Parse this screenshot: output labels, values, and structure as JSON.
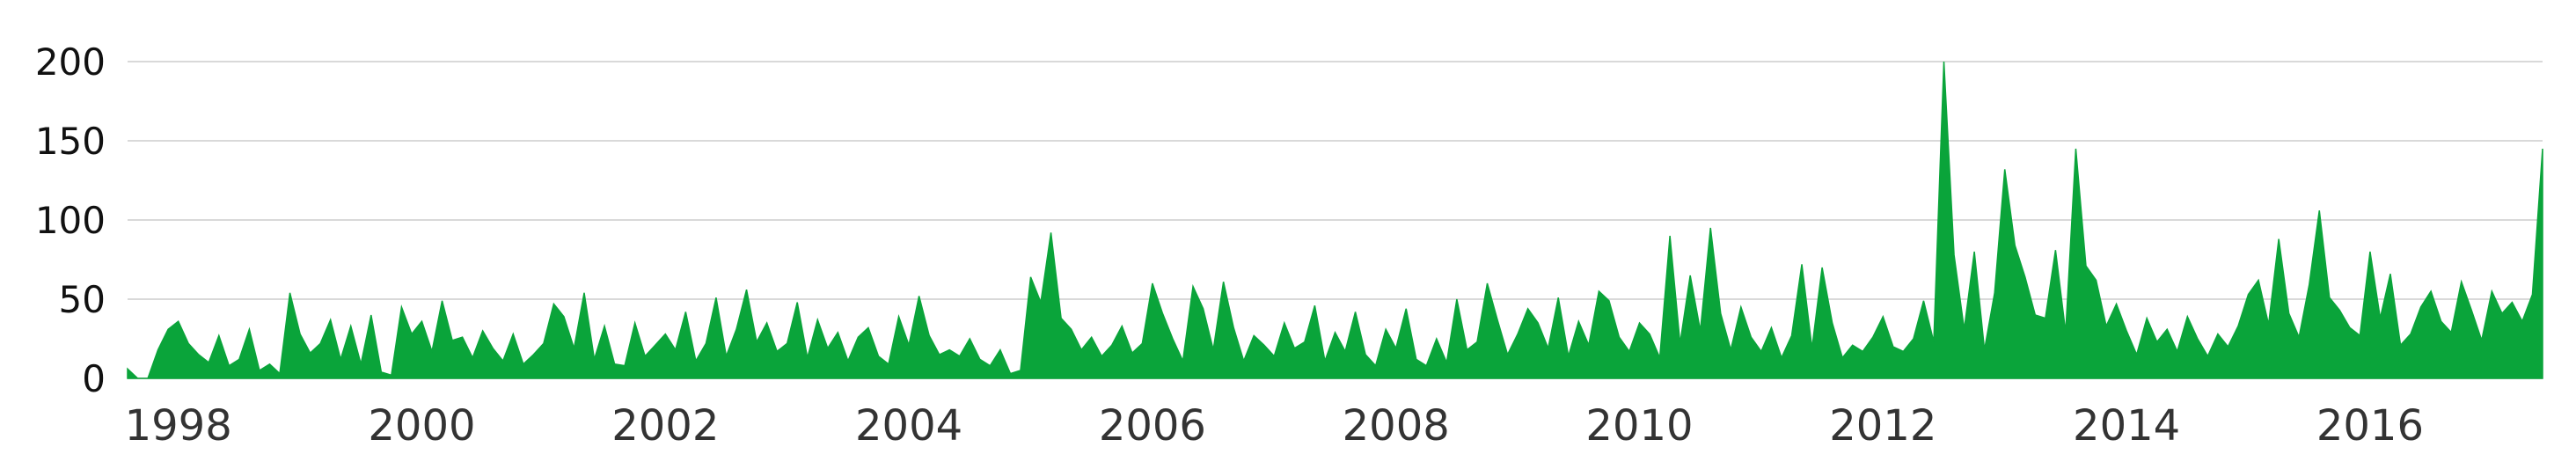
{
  "chart_data": {
    "type": "area",
    "title": "",
    "xlabel": "",
    "ylabel": "",
    "ylim": [
      0,
      200
    ],
    "xlim": [
      "1997-08",
      "2017-06"
    ],
    "grid": true,
    "legend": "none",
    "colors": {
      "series": "#0aa43a",
      "grid": "#d9d9d9",
      "background": "#ffffff"
    },
    "x_ticks": [
      {
        "date": "1998-01",
        "label": "1998"
      },
      {
        "date": "2000-01",
        "label": "2000"
      },
      {
        "date": "2002-01",
        "label": "2002"
      },
      {
        "date": "2004-01",
        "label": "2004"
      },
      {
        "date": "2006-01",
        "label": "2006"
      },
      {
        "date": "2008-01",
        "label": "2008"
      },
      {
        "date": "2010-01",
        "label": "2010"
      },
      {
        "date": "2012-01",
        "label": "2012"
      },
      {
        "date": "2014-01",
        "label": "2014"
      },
      {
        "date": "2016-01",
        "label": "2016"
      }
    ],
    "y_ticks": [
      {
        "value": 0,
        "label": "0"
      },
      {
        "value": 50,
        "label": "50"
      },
      {
        "value": 100,
        "label": "100"
      },
      {
        "value": 150,
        "label": "150"
      },
      {
        "value": 200,
        "label": "200"
      }
    ],
    "series": [
      {
        "x": [
          "1997-08",
          "1997-09",
          "1997-10",
          "1997-11",
          "1997-12",
          "1998-01",
          "1998-02",
          "1998-03",
          "1998-04",
          "1998-05",
          "1998-06",
          "1998-07",
          "1998-08",
          "1998-09",
          "1998-10",
          "1998-11",
          "1998-12",
          "1999-01",
          "1999-02",
          "1999-03",
          "1999-04",
          "1999-05",
          "1999-06",
          "1999-07",
          "1999-08",
          "1999-09",
          "1999-10",
          "1999-11",
          "1999-12",
          "2000-01",
          "2000-02",
          "2000-03",
          "2000-04",
          "2000-05",
          "2000-06",
          "2000-07",
          "2000-08",
          "2000-09",
          "2000-10",
          "2000-11",
          "2000-12",
          "2001-01",
          "2001-02",
          "2001-03",
          "2001-04",
          "2001-05",
          "2001-06",
          "2001-07",
          "2001-08",
          "2001-09",
          "2001-10",
          "2001-11",
          "2001-12",
          "2002-01",
          "2002-02",
          "2002-03",
          "2002-04",
          "2002-05",
          "2002-06",
          "2002-07",
          "2002-08",
          "2002-09",
          "2002-10",
          "2002-11",
          "2002-12",
          "2003-01",
          "2003-02",
          "2003-03",
          "2003-04",
          "2003-05",
          "2003-06",
          "2003-07",
          "2003-08",
          "2003-09",
          "2003-10",
          "2003-11",
          "2003-12",
          "2004-01",
          "2004-02",
          "2004-03",
          "2004-04",
          "2004-05",
          "2004-06",
          "2004-07",
          "2004-08",
          "2004-09",
          "2004-10",
          "2004-11",
          "2004-12",
          "2005-01",
          "2005-02",
          "2005-03",
          "2005-04",
          "2005-05",
          "2005-06",
          "2005-07",
          "2005-08",
          "2005-09",
          "2005-10",
          "2005-11",
          "2005-12",
          "2006-01",
          "2006-02",
          "2006-03",
          "2006-04",
          "2006-05",
          "2006-06",
          "2006-07",
          "2006-08",
          "2006-09",
          "2006-10",
          "2006-11",
          "2006-12",
          "2007-01",
          "2007-02",
          "2007-03",
          "2007-04",
          "2007-05",
          "2007-06",
          "2007-07",
          "2007-08",
          "2007-09",
          "2007-10",
          "2007-11",
          "2007-12",
          "2008-01",
          "2008-02",
          "2008-03",
          "2008-04",
          "2008-05",
          "2008-06",
          "2008-07",
          "2008-08",
          "2008-09",
          "2008-10",
          "2008-11",
          "2008-12",
          "2009-01",
          "2009-02",
          "2009-03",
          "2009-04",
          "2009-05",
          "2009-06",
          "2009-07",
          "2009-08",
          "2009-09",
          "2009-10",
          "2009-11",
          "2009-12",
          "2010-01",
          "2010-02",
          "2010-03",
          "2010-04",
          "2010-05",
          "2010-06",
          "2010-07",
          "2010-08",
          "2010-09",
          "2010-10",
          "2010-11",
          "2010-12",
          "2011-01",
          "2011-02",
          "2011-03",
          "2011-04",
          "2011-05",
          "2011-06",
          "2011-07",
          "2011-08",
          "2011-09",
          "2011-10",
          "2011-11",
          "2011-12",
          "2012-01",
          "2012-02",
          "2012-03",
          "2012-04",
          "2012-05",
          "2012-06",
          "2012-07",
          "2012-08",
          "2012-09",
          "2012-10",
          "2012-11",
          "2012-12",
          "2013-01",
          "2013-02",
          "2013-03",
          "2013-04",
          "2013-05",
          "2013-06",
          "2013-07",
          "2013-08",
          "2013-09",
          "2013-10",
          "2013-11",
          "2013-12",
          "2014-01",
          "2014-02",
          "2014-03",
          "2014-04",
          "2014-05",
          "2014-06",
          "2014-07",
          "2014-08",
          "2014-09",
          "2014-10",
          "2014-11",
          "2014-12",
          "2015-01",
          "2015-02",
          "2015-03",
          "2015-04",
          "2015-05",
          "2015-06",
          "2015-07",
          "2015-08",
          "2015-09",
          "2015-10",
          "2015-11",
          "2015-12",
          "2016-01",
          "2016-02",
          "2016-03",
          "2016-04",
          "2016-05",
          "2016-06",
          "2016-07",
          "2016-08",
          "2016-09",
          "2016-10",
          "2016-11",
          "2016-12",
          "2017-01",
          "2017-02",
          "2017-03",
          "2017-04",
          "2017-05",
          "2017-06"
        ],
        "values": [
          6,
          0,
          0,
          18,
          31,
          36,
          22,
          15,
          10,
          27,
          8,
          12,
          31,
          5,
          9,
          3,
          54,
          28,
          16,
          22,
          37,
          12,
          33,
          9,
          40,
          4,
          2,
          45,
          28,
          36,
          17,
          49,
          24,
          26,
          13,
          30,
          19,
          11,
          28,
          9,
          15,
          22,
          47,
          39,
          19,
          54,
          12,
          33,
          9,
          8,
          35,
          14,
          21,
          28,
          18,
          42,
          11,
          22,
          51,
          14,
          31,
          56,
          23,
          35,
          17,
          22,
          48,
          13,
          37,
          19,
          29,
          11,
          26,
          32,
          14,
          9,
          39,
          21,
          52,
          27,
          15,
          18,
          14,
          25,
          12,
          8,
          18,
          3,
          5,
          64,
          48,
          92,
          38,
          31,
          18,
          26,
          14,
          21,
          33,
          16,
          22,
          60,
          41,
          25,
          11,
          58,
          44,
          18,
          61,
          32,
          11,
          27,
          21,
          14,
          35,
          19,
          23,
          46,
          11,
          29,
          17,
          42,
          15,
          8,
          31,
          19,
          44,
          12,
          8,
          25,
          10,
          50,
          18,
          23,
          60,
          37,
          15,
          28,
          44,
          35,
          19,
          51,
          14,
          36,
          21,
          55,
          49,
          26,
          17,
          35,
          28,
          13,
          90,
          22,
          65,
          30,
          95,
          41,
          18,
          45,
          26,
          17,
          32,
          13,
          27,
          72,
          19,
          70,
          35,
          13,
          21,
          17,
          26,
          39,
          20,
          17,
          25,
          49,
          23,
          200,
          78,
          31,
          80,
          18,
          54,
          132,
          84,
          64,
          40,
          38,
          81,
          29,
          145,
          71,
          62,
          33,
          47,
          30,
          15,
          38,
          23,
          31,
          17,
          39,
          25,
          14,
          28,
          20,
          33,
          53,
          62,
          34,
          88,
          41,
          26,
          59,
          106,
          51,
          43,
          32,
          27,
          80,
          38,
          66,
          21,
          28,
          45,
          55,
          36,
          29,
          61,
          43,
          24,
          55,
          41,
          48,
          36,
          53,
          145
        ]
      }
    ]
  }
}
